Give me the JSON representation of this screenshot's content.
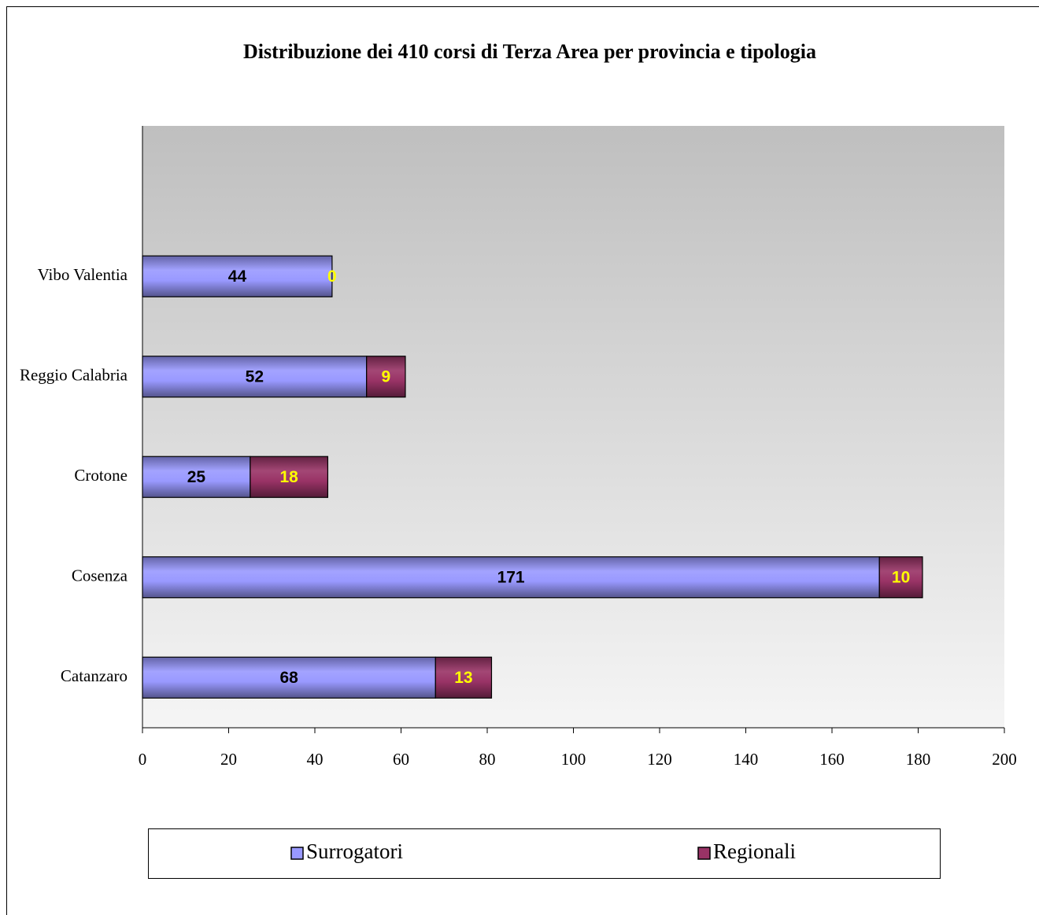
{
  "chart_data": {
    "type": "stacked-bar-horizontal",
    "title": "Distribuzione  dei 410 corsi di Terza Area per provincia e  tipologia",
    "categories": [
      "Catanzaro",
      "Cosenza",
      "Crotone",
      "Reggio Calabria",
      "Vibo Valentia",
      null
    ],
    "series": [
      {
        "name": "Surrogatori",
        "color": "#9999ff",
        "label_color": "#000000",
        "values": [
          68,
          171,
          25,
          52,
          44,
          null
        ]
      },
      {
        "name": "Regionali",
        "color": "#993366",
        "label_color": "#ffff00",
        "values": [
          13,
          10,
          18,
          9,
          0,
          null
        ]
      }
    ],
    "xlim": [
      0,
      200
    ],
    "xticks": [
      0,
      20,
      40,
      60,
      80,
      100,
      120,
      140,
      160,
      180,
      200
    ],
    "legend": "bottom"
  }
}
